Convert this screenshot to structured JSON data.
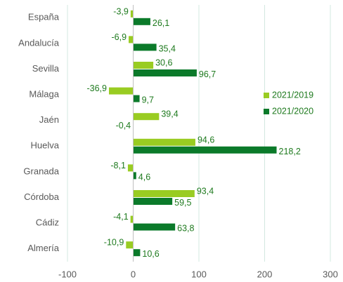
{
  "chart_data": {
    "type": "bar",
    "orientation": "horizontal",
    "categories": [
      "España",
      "Andalucía",
      "Sevilla",
      "Málaga",
      "Jaén",
      "Huelva",
      "Granada",
      "Córdoba",
      "Cádiz",
      "Almería"
    ],
    "series": [
      {
        "name": "2021/2019",
        "color": "#99cc22",
        "values": [
          -3.9,
          -6.9,
          30.6,
          -36.9,
          39.4,
          94.6,
          -8.1,
          93.4,
          -4.1,
          -10.9
        ],
        "value_labels": [
          "-3,9",
          "-6,9",
          "30,6",
          "-36,9",
          "39,4",
          "94,6",
          "-8,1",
          "93,4",
          "-4,1",
          "-10,9"
        ]
      },
      {
        "name": "2021/2020",
        "color": "#0b7a2a",
        "values": [
          26.1,
          35.4,
          96.7,
          9.7,
          -0.4,
          218.2,
          4.6,
          59.5,
          63.8,
          10.6
        ],
        "value_labels": [
          "26,1",
          "35,4",
          "96,7",
          "9,7",
          "-0,4",
          "218,2",
          "4,6",
          "59,5",
          "63,8",
          "10,6"
        ]
      }
    ],
    "xlim": [
      -100,
      300
    ],
    "xticks": [
      -100,
      0,
      100,
      200,
      300
    ],
    "grid": true,
    "legend": "right"
  }
}
